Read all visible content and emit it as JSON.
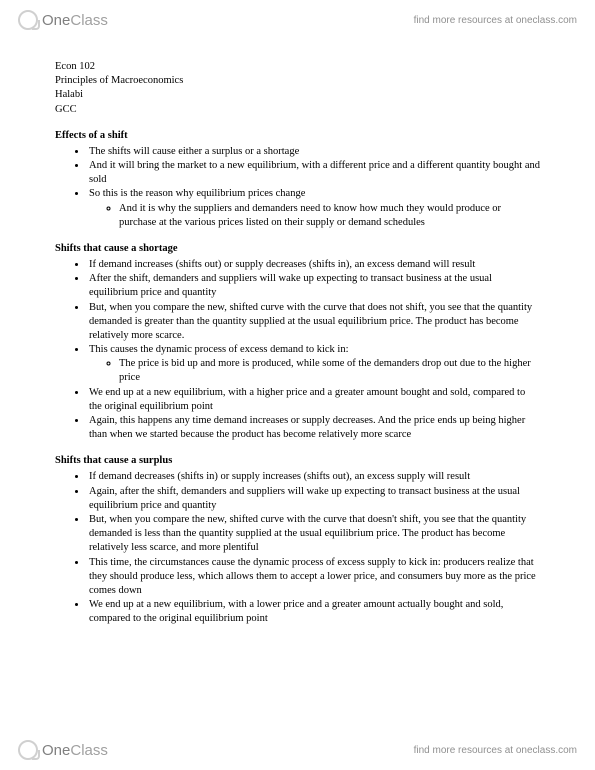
{
  "brand": {
    "one": "One",
    "class": "Class"
  },
  "header_link": "find more resources at oneclass.com",
  "footer_link": "find more resources at oneclass.com",
  "course": {
    "code": "Econ 102",
    "title": "Principles of Macroeconomics",
    "instructor": "Halabi",
    "school": "GCC"
  },
  "sections": [
    {
      "title": "Effects of a shift",
      "items": [
        {
          "text": "The shifts will cause either a surplus or a shortage"
        },
        {
          "text": "And it will bring the market to a new equilibrium, with a different price and a different quantity bought and sold"
        },
        {
          "text": "So this is the reason why equilibrium prices change",
          "sub": [
            "And it is why the suppliers and demanders need to know how much they would produce or purchase at the various prices listed on their supply or demand schedules"
          ]
        }
      ]
    },
    {
      "title": "Shifts that cause a shortage",
      "items": [
        {
          "text": "If demand increases (shifts out) or supply decreases (shifts in), an excess demand will result"
        },
        {
          "text": "After the shift, demanders and suppliers will wake up expecting to transact business at the usual equilibrium price and quantity"
        },
        {
          "text": "But, when you compare the new, shifted curve with the curve that does not shift, you see that the quantity demanded is greater than the quantity supplied at the usual equilibrium price. The product has become relatively more scarce."
        },
        {
          "text": "This causes the dynamic process of excess demand to kick in:",
          "sub": [
            "The price is bid up and more is produced, while some of the demanders drop out due to the higher price"
          ]
        },
        {
          "text": "We end up at a new equilibrium, with a higher price and a greater amount bought and sold, compared to the original equilibrium point"
        },
        {
          "text": "Again, this happens any time demand increases or supply decreases. And the price ends up being higher than when we started because the product has become relatively more scarce"
        }
      ]
    },
    {
      "title": "Shifts that cause a surplus",
      "items": [
        {
          "text": "If demand decreases (shifts in) or supply increases (shifts out), an excess supply will result"
        },
        {
          "text": "Again, after the shift, demanders and suppliers will wake up expecting to transact business at the usual equilibrium price and quantity"
        },
        {
          "text": "But, when you compare the new, shifted curve with the curve that doesn't shift, you see that the quantity demanded is less than the quantity supplied at the usual equilibrium price. The product has become relatively less scarce, and more plentiful"
        },
        {
          "text": "This time, the circumstances cause the dynamic process of excess supply to kick in: producers realize that they should produce less, which allows them to accept a lower price, and consumers buy more as the price comes down"
        },
        {
          "text": "We end up at a new equilibrium, with a lower price and a greater amount actually bought and sold, compared to the original equilibrium point"
        }
      ]
    }
  ]
}
